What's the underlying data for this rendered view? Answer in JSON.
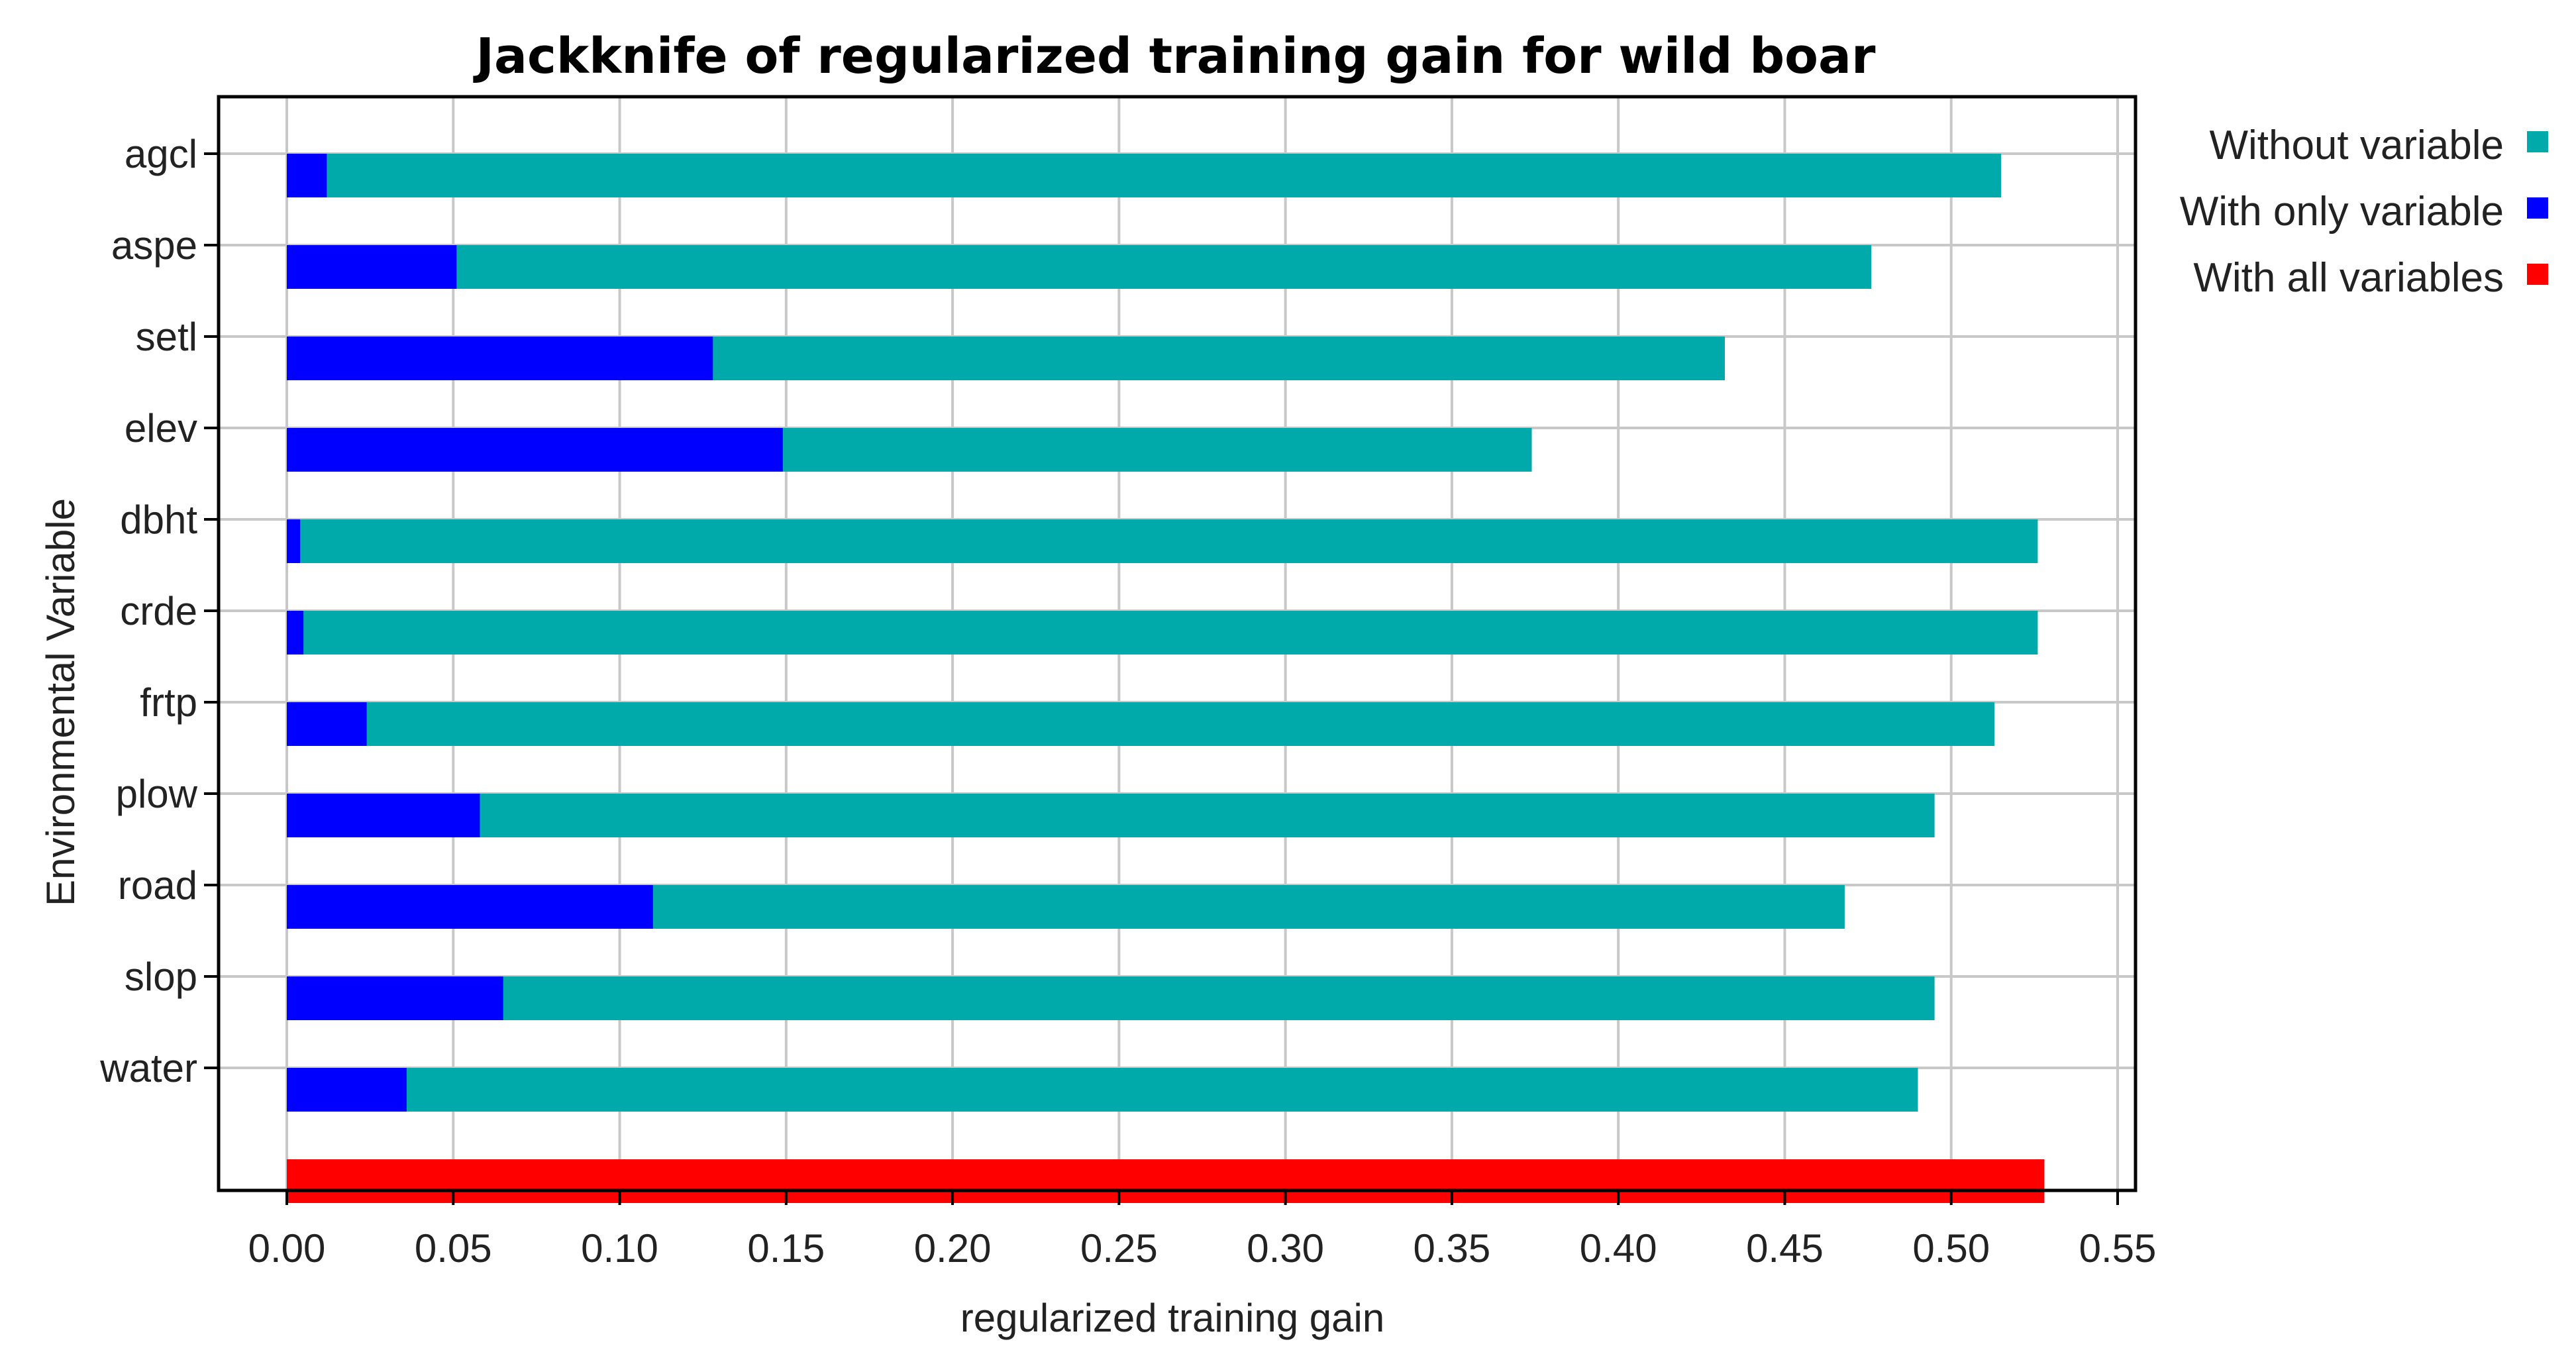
{
  "chart_data": {
    "type": "bar",
    "orientation": "horizontal",
    "title": "Jackknife of regularized training gain for wild boar",
    "xlabel": "regularized training gain",
    "ylabel": "Environmental Variable",
    "xlim": [
      0,
      0.55
    ],
    "xticks": [
      "0.00",
      "0.05",
      "0.10",
      "0.15",
      "0.20",
      "0.25",
      "0.30",
      "0.35",
      "0.40",
      "0.45",
      "0.50",
      "0.55"
    ],
    "grid": true,
    "legend_position": "right",
    "categories": [
      "agcl",
      "aspe",
      "setl",
      "elev",
      "dbht",
      "crde",
      "frtp",
      "plow",
      "road",
      "slop",
      "water"
    ],
    "series": [
      {
        "name": "Without variable",
        "color": "#00AAAA",
        "values": [
          0.515,
          0.476,
          0.432,
          0.374,
          0.526,
          0.526,
          0.513,
          0.495,
          0.468,
          0.495,
          0.49
        ]
      },
      {
        "name": "With only variable",
        "color": "#0000FF",
        "values": [
          0.012,
          0.051,
          0.128,
          0.149,
          0.004,
          0.005,
          0.024,
          0.058,
          0.11,
          0.065,
          0.036
        ]
      },
      {
        "name": "With all variables",
        "color": "#FF0000",
        "value": 0.528
      }
    ]
  }
}
